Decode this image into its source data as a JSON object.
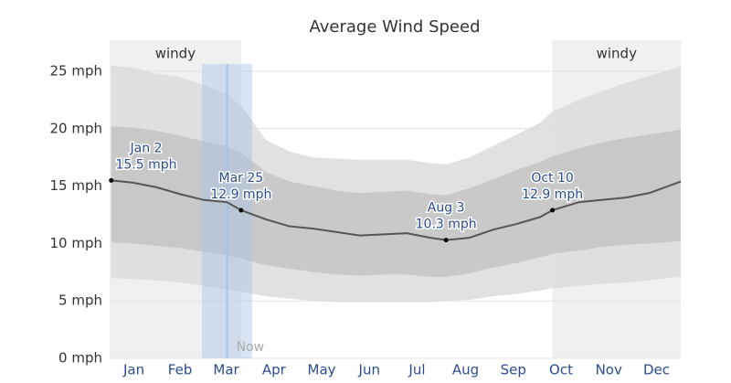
{
  "chart_data": {
    "type": "band-line",
    "title": "Average Wind Speed",
    "xlim": [
      0,
      365
    ],
    "xticks": [
      {
        "value": 15.5,
        "label": "Jan"
      },
      {
        "value": 45,
        "label": "Feb"
      },
      {
        "value": 74.5,
        "label": "Mar"
      },
      {
        "value": 105,
        "label": "Apr"
      },
      {
        "value": 135.5,
        "label": "May"
      },
      {
        "value": 166,
        "label": "Jun"
      },
      {
        "value": 196.5,
        "label": "Jul"
      },
      {
        "value": 227.5,
        "label": "Aug"
      },
      {
        "value": 258,
        "label": "Sep"
      },
      {
        "value": 288.5,
        "label": "Oct"
      },
      {
        "value": 319,
        "label": "Nov"
      },
      {
        "value": 349.5,
        "label": "Dec"
      }
    ],
    "ylim": [
      0,
      25
    ],
    "yticks": [
      {
        "value": 0,
        "label": "0 mph"
      },
      {
        "value": 5,
        "label": "5 mph"
      },
      {
        "value": 10,
        "label": "10 mph"
      },
      {
        "value": 15,
        "label": "15 mph"
      },
      {
        "value": 20,
        "label": "20 mph"
      },
      {
        "value": 25,
        "label": "25 mph"
      }
    ],
    "grid": true,
    "x": [
      1,
      15,
      30,
      45,
      60,
      75,
      84,
      100,
      115,
      130,
      145,
      160,
      175,
      190,
      205,
      215,
      230,
      245,
      260,
      275,
      283,
      300,
      315,
      330,
      345,
      365
    ],
    "bands": [
      {
        "color": "#dcdcdc",
        "low": [
          7.0,
          6.9,
          6.8,
          6.6,
          6.3,
          6.0,
          5.8,
          5.4,
          5.2,
          5.0,
          4.9,
          4.9,
          4.9,
          4.9,
          4.9,
          5.0,
          5.1,
          5.4,
          5.6,
          5.9,
          6.1,
          6.3,
          6.5,
          6.6,
          6.8,
          7.1
        ],
        "high": [
          25.5,
          25.3,
          24.8,
          24.5,
          23.8,
          23.0,
          22.0,
          19.0,
          18.0,
          17.5,
          17.4,
          17.3,
          17.3,
          17.3,
          17.0,
          16.9,
          17.5,
          18.5,
          19.5,
          20.5,
          21.5,
          22.5,
          23.3,
          24.0,
          24.6,
          25.4
        ]
      },
      {
        "color": "#c4c4c4",
        "low": [
          10.1,
          10.0,
          9.8,
          9.6,
          9.3,
          9.0,
          8.7,
          8.1,
          7.8,
          7.5,
          7.3,
          7.2,
          7.3,
          7.3,
          7.1,
          7.1,
          7.4,
          7.9,
          8.3,
          8.8,
          9.1,
          9.4,
          9.7,
          9.9,
          10.0,
          10.2
        ],
        "high": [
          20.2,
          20.1,
          19.8,
          19.4,
          18.9,
          18.5,
          17.9,
          16.2,
          15.4,
          15.0,
          14.6,
          14.4,
          14.5,
          14.6,
          14.3,
          14.2,
          14.8,
          15.6,
          16.4,
          17.1,
          17.6,
          18.3,
          18.8,
          19.2,
          19.5,
          19.9
        ]
      }
    ],
    "series": [
      {
        "color": "#555555",
        "values": [
          15.5,
          15.3,
          14.9,
          14.3,
          13.8,
          13.6,
          12.9,
          12.1,
          11.5,
          11.3,
          11.0,
          10.7,
          10.8,
          10.9,
          10.5,
          10.3,
          10.5,
          11.2,
          11.7,
          12.3,
          12.9,
          13.6,
          13.8,
          14.0,
          14.4,
          15.4
        ]
      }
    ],
    "regions": [
      {
        "label": "windy",
        "from": 0,
        "to": 84
      },
      {
        "label": "windy",
        "from": 283,
        "to": 365
      }
    ],
    "now": {
      "label": "Now",
      "from": 59,
      "to": 91
    },
    "annotations": [
      {
        "x": 1,
        "y": 15.5,
        "label": "Jan 2",
        "value_label": "15.5 mph"
      },
      {
        "x": 84,
        "y": 12.9,
        "label": "Mar 25",
        "value_label": "12.9 mph"
      },
      {
        "x": 215,
        "y": 10.3,
        "label": "Aug 3",
        "value_label": "10.3 mph"
      },
      {
        "x": 283,
        "y": 12.9,
        "label": "Oct 10",
        "value_label": "12.9 mph"
      }
    ]
  }
}
